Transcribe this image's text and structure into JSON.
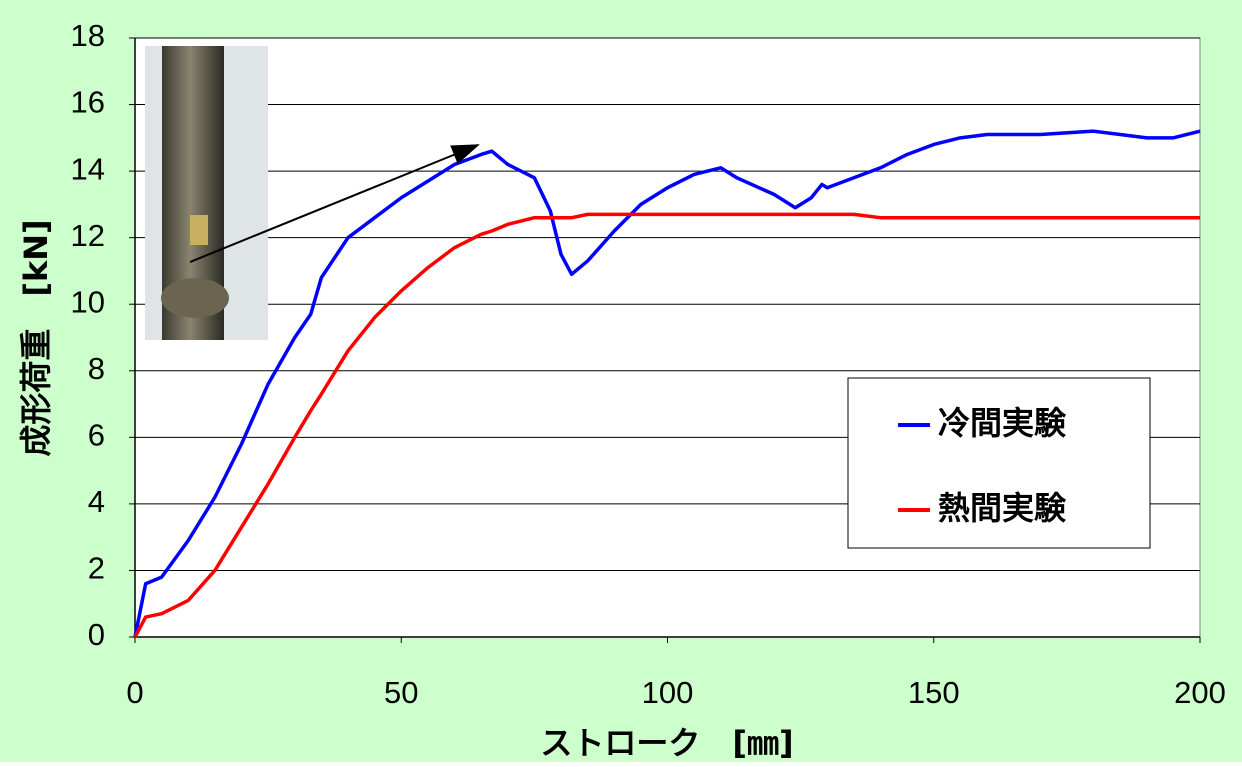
{
  "chart_data": {
    "type": "line",
    "x_label": "ストローク　[㎜]",
    "y_label": "成形荷重　[kN]",
    "x": [
      0,
      2,
      5,
      10,
      15,
      20,
      25,
      30,
      33,
      35,
      40,
      45,
      50,
      55,
      60,
      65,
      67,
      70,
      75,
      78,
      80,
      82,
      85,
      90,
      95,
      100,
      105,
      110,
      113,
      120,
      124,
      127,
      129,
      130,
      135,
      140,
      145,
      150,
      155,
      160,
      170,
      180,
      185,
      190,
      195,
      200
    ],
    "series": [
      {
        "name": "冷間実験",
        "color": "#0000ff",
        "values": [
          0,
          1.6,
          1.8,
          2.9,
          4.2,
          5.8,
          7.6,
          9.0,
          9.7,
          10.8,
          12.0,
          12.6,
          13.2,
          13.7,
          14.2,
          14.5,
          14.6,
          14.2,
          13.8,
          12.8,
          11.5,
          10.9,
          11.3,
          12.2,
          13.0,
          13.5,
          13.9,
          14.1,
          13.8,
          13.3,
          12.9,
          13.2,
          13.6,
          13.5,
          13.8,
          14.1,
          14.5,
          14.8,
          15.0,
          15.1,
          15.1,
          15.2,
          15.1,
          15.0,
          15.0,
          15.2
        ]
      },
      {
        "name": "熱間実験",
        "color": "#ff0000",
        "values": [
          0,
          0.6,
          0.7,
          1.1,
          2.0,
          3.3,
          4.6,
          6.0,
          6.8,
          7.3,
          8.6,
          9.6,
          10.4,
          11.1,
          11.7,
          12.1,
          12.2,
          12.4,
          12.6,
          12.6,
          12.6,
          12.6,
          12.7,
          12.7,
          12.7,
          12.7,
          12.7,
          12.7,
          12.7,
          12.7,
          12.7,
          12.7,
          12.7,
          12.7,
          12.7,
          12.6,
          12.6,
          12.6,
          12.6,
          12.6,
          12.6,
          12.6,
          12.6,
          12.6,
          12.6,
          12.6
        ]
      }
    ],
    "xlim": [
      0,
      200
    ],
    "xticks": [
      0,
      50,
      100,
      150,
      200
    ],
    "ylim": [
      0,
      18
    ],
    "yticks": [
      0,
      2,
      4,
      6,
      8,
      10,
      12,
      14,
      16,
      18
    ],
    "grid": true
  }
}
